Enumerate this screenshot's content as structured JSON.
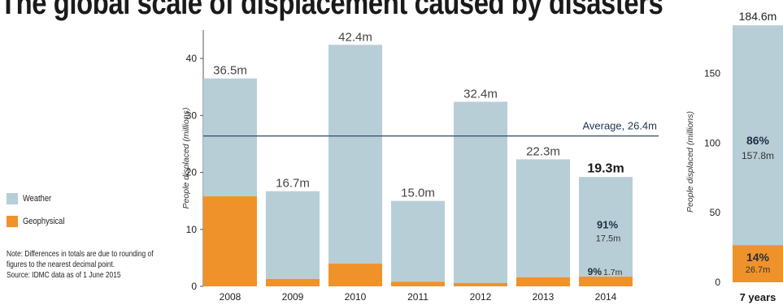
{
  "title": "The global scale of displacement caused by disasters",
  "legend": [
    {
      "label": "Weather",
      "color": "#b8ced7"
    },
    {
      "label": "Geophysical",
      "color": "#f0922a"
    }
  ],
  "notes": {
    "note": "Note: Differences in totals are due to rounding of figures to the nearest decimal point.",
    "source": "Source: IDMC data as of 1 June 2015"
  },
  "colors": {
    "weather": "#b8ced7",
    "geophysical": "#f0922a",
    "average_line": "#2f4a66",
    "axis": "#555555"
  },
  "chart_data": [
    {
      "type": "bar",
      "stacked": true,
      "categories": [
        "2008",
        "2009",
        "2010",
        "2011",
        "2012",
        "2013",
        "2014"
      ],
      "series": [
        {
          "name": "Geophysical",
          "values": [
            15.8,
            1.3,
            4.0,
            0.8,
            0.6,
            1.6,
            1.7
          ]
        },
        {
          "name": "Weather",
          "values": [
            20.7,
            15.4,
            38.4,
            14.2,
            31.8,
            20.7,
            17.5
          ]
        }
      ],
      "totals": [
        36.5,
        16.7,
        42.4,
        15.0,
        32.4,
        22.3,
        19.3
      ],
      "total_labels": [
        "36.5m",
        "16.7m",
        "42.4m",
        "15.0m",
        "32.4m",
        "22.3m",
        "19.3m"
      ],
      "ylabel": "People displaced (millions)",
      "ylim": [
        0,
        45
      ],
      "yticks": [
        0,
        10,
        20,
        30,
        40
      ],
      "reference_line": {
        "value": 26.4,
        "label": "Average, 26.4m"
      },
      "annotations": [
        {
          "category": "2014",
          "series": "Weather",
          "percent": "91%",
          "value": "17.5m"
        },
        {
          "category": "2014",
          "series": "Geophysical",
          "percent": "9%",
          "value": "1.7m"
        }
      ]
    },
    {
      "type": "bar",
      "stacked": true,
      "categories": [
        "7 years"
      ],
      "series": [
        {
          "name": "Geophysical",
          "values": [
            26.7
          ]
        },
        {
          "name": "Weather",
          "values": [
            157.8
          ]
        }
      ],
      "totals": [
        184.6
      ],
      "total_labels": [
        "184.6m"
      ],
      "ylabel": "People displaced (millions)",
      "ylim": [
        0,
        190
      ],
      "yticks": [
        0,
        50,
        100,
        150
      ],
      "annotations": [
        {
          "category": "7 years",
          "series": "Weather",
          "percent": "86%",
          "value": "157.8m"
        },
        {
          "category": "7 years",
          "series": "Geophysical",
          "percent": "14%",
          "value": "26.7m"
        }
      ]
    }
  ]
}
